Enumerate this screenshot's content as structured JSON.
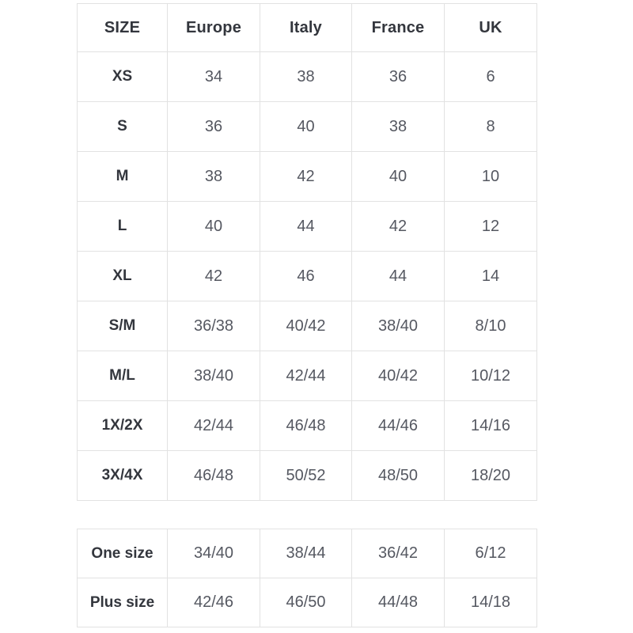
{
  "colors": {
    "background": "#ffffff",
    "border": "#e2e2e2",
    "header_text": "#33363d",
    "value_text": "#555861"
  },
  "size_table": {
    "columns": [
      "SIZE",
      "Europe",
      "Italy",
      "France",
      "UK"
    ],
    "rows": [
      {
        "label": "XS",
        "values": [
          "34",
          "38",
          "36",
          "6"
        ]
      },
      {
        "label": "S",
        "values": [
          "36",
          "40",
          "38",
          "8"
        ]
      },
      {
        "label": "M",
        "values": [
          "38",
          "42",
          "40",
          "10"
        ]
      },
      {
        "label": "L",
        "values": [
          "40",
          "44",
          "42",
          "12"
        ]
      },
      {
        "label": "XL",
        "values": [
          "42",
          "46",
          "44",
          "14"
        ]
      },
      {
        "label": "S/M",
        "values": [
          "36/38",
          "40/42",
          "38/40",
          "8/10"
        ]
      },
      {
        "label": "M/L",
        "values": [
          "38/40",
          "42/44",
          "40/42",
          "10/12"
        ]
      },
      {
        "label": "1X/2X",
        "values": [
          "42/44",
          "46/48",
          "44/46",
          "14/16"
        ]
      },
      {
        "label": "3X/4X",
        "values": [
          "46/48",
          "50/52",
          "48/50",
          "18/20"
        ]
      }
    ]
  },
  "special_table": {
    "rows": [
      {
        "label": "One size",
        "values": [
          "34/40",
          "38/44",
          "36/42",
          "6/12"
        ]
      },
      {
        "label": "Plus size",
        "values": [
          "42/46",
          "46/50",
          "44/48",
          "14/18"
        ]
      }
    ]
  },
  "chart_data": {
    "type": "table",
    "title": "",
    "columns": [
      "SIZE",
      "Europe",
      "Italy",
      "France",
      "UK"
    ],
    "rows": [
      [
        "XS",
        "34",
        "38",
        "36",
        "6"
      ],
      [
        "S",
        "36",
        "40",
        "38",
        "8"
      ],
      [
        "M",
        "38",
        "42",
        "40",
        "10"
      ],
      [
        "L",
        "40",
        "44",
        "42",
        "12"
      ],
      [
        "XL",
        "42",
        "46",
        "44",
        "14"
      ],
      [
        "S/M",
        "36/38",
        "40/42",
        "38/40",
        "8/10"
      ],
      [
        "M/L",
        "38/40",
        "42/44",
        "40/42",
        "10/12"
      ],
      [
        "1X/2X",
        "42/44",
        "46/48",
        "44/46",
        "14/16"
      ],
      [
        "3X/4X",
        "46/48",
        "50/52",
        "48/50",
        "18/20"
      ],
      [
        "One size",
        "34/40",
        "38/44",
        "36/42",
        "6/12"
      ],
      [
        "Plus size",
        "42/46",
        "46/50",
        "44/48",
        "14/18"
      ]
    ]
  }
}
